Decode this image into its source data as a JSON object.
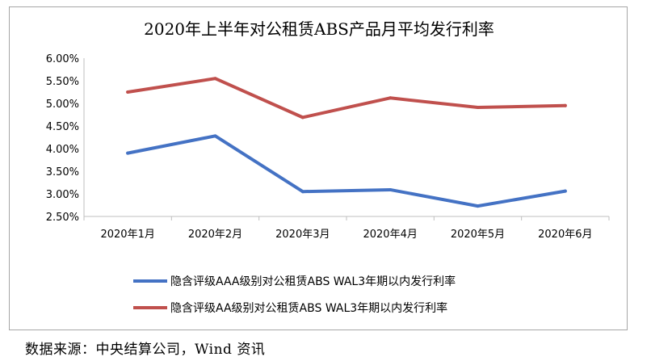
{
  "chart_data": {
    "type": "line",
    "title": "2020年上半年对公租赁ABS产品月平均发行利率",
    "categories": [
      "2020年1月",
      "2020年2月",
      "2020年3月",
      "2020年4月",
      "2020年5月",
      "2020年6月"
    ],
    "yticks": [
      "6.00%",
      "5.50%",
      "5.00%",
      "4.50%",
      "4.00%",
      "3.50%",
      "3.00%",
      "2.50%"
    ],
    "ylim": [
      2.5,
      6.0
    ],
    "xlabel": "",
    "ylabel": "",
    "grid": false,
    "legend_position": "bottom",
    "series": [
      {
        "name": "隐含评级AAA级别对公租赁ABS WAL3年期以内发行利率",
        "color": "#4472c4",
        "values": [
          3.9,
          4.28,
          3.05,
          3.09,
          2.73,
          3.06
        ]
      },
      {
        "name": "隐含评级AA级别对公租赁ABS WAL3年期以内发行利率",
        "color": "#c0504d",
        "values": [
          5.25,
          5.55,
          4.69,
          5.12,
          4.91,
          4.95
        ]
      }
    ]
  },
  "source": "数据来源：中央结算公司，Wind 资讯"
}
